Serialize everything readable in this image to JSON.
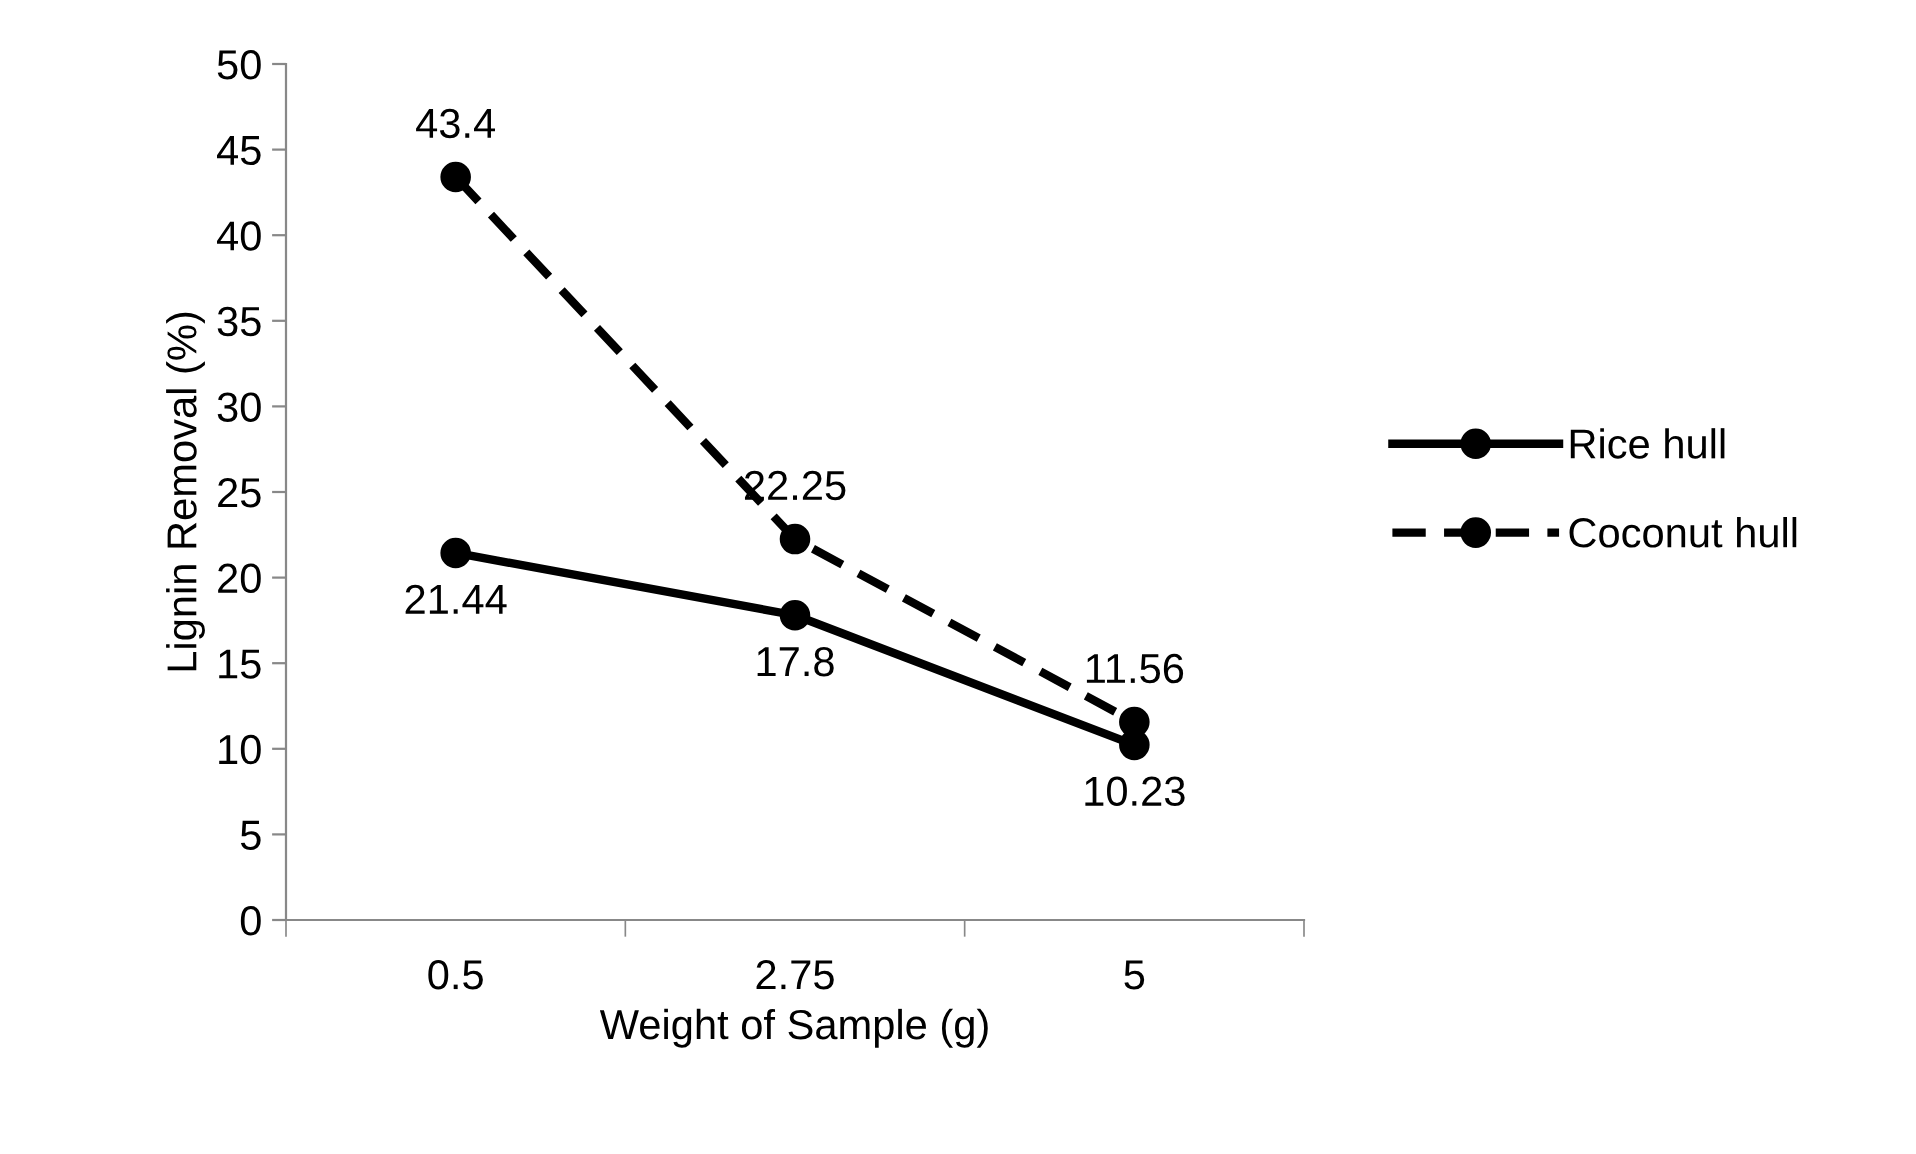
{
  "chart_data": {
    "type": "line",
    "xlabel": "Weight of Sample (g)",
    "ylabel": "Lignin Removal (%)",
    "categories": [
      "0.5",
      "2.75",
      "5"
    ],
    "series": [
      {
        "name": "Rice hull",
        "color": "#000000",
        "values": [
          21.44,
          17.8,
          10.23
        ],
        "line_style": "solid"
      },
      {
        "name": "Coconut hull",
        "color": "#000000",
        "values": [
          43.4,
          22.25,
          11.56
        ],
        "line_style": "dashed"
      }
    ],
    "ylim": [
      0,
      50
    ],
    "yticks": [
      0,
      5,
      10,
      15,
      20,
      25,
      30,
      35,
      40,
      45,
      50
    ],
    "marker": "circle",
    "data_labels": true,
    "legend": "right",
    "grid": false
  }
}
